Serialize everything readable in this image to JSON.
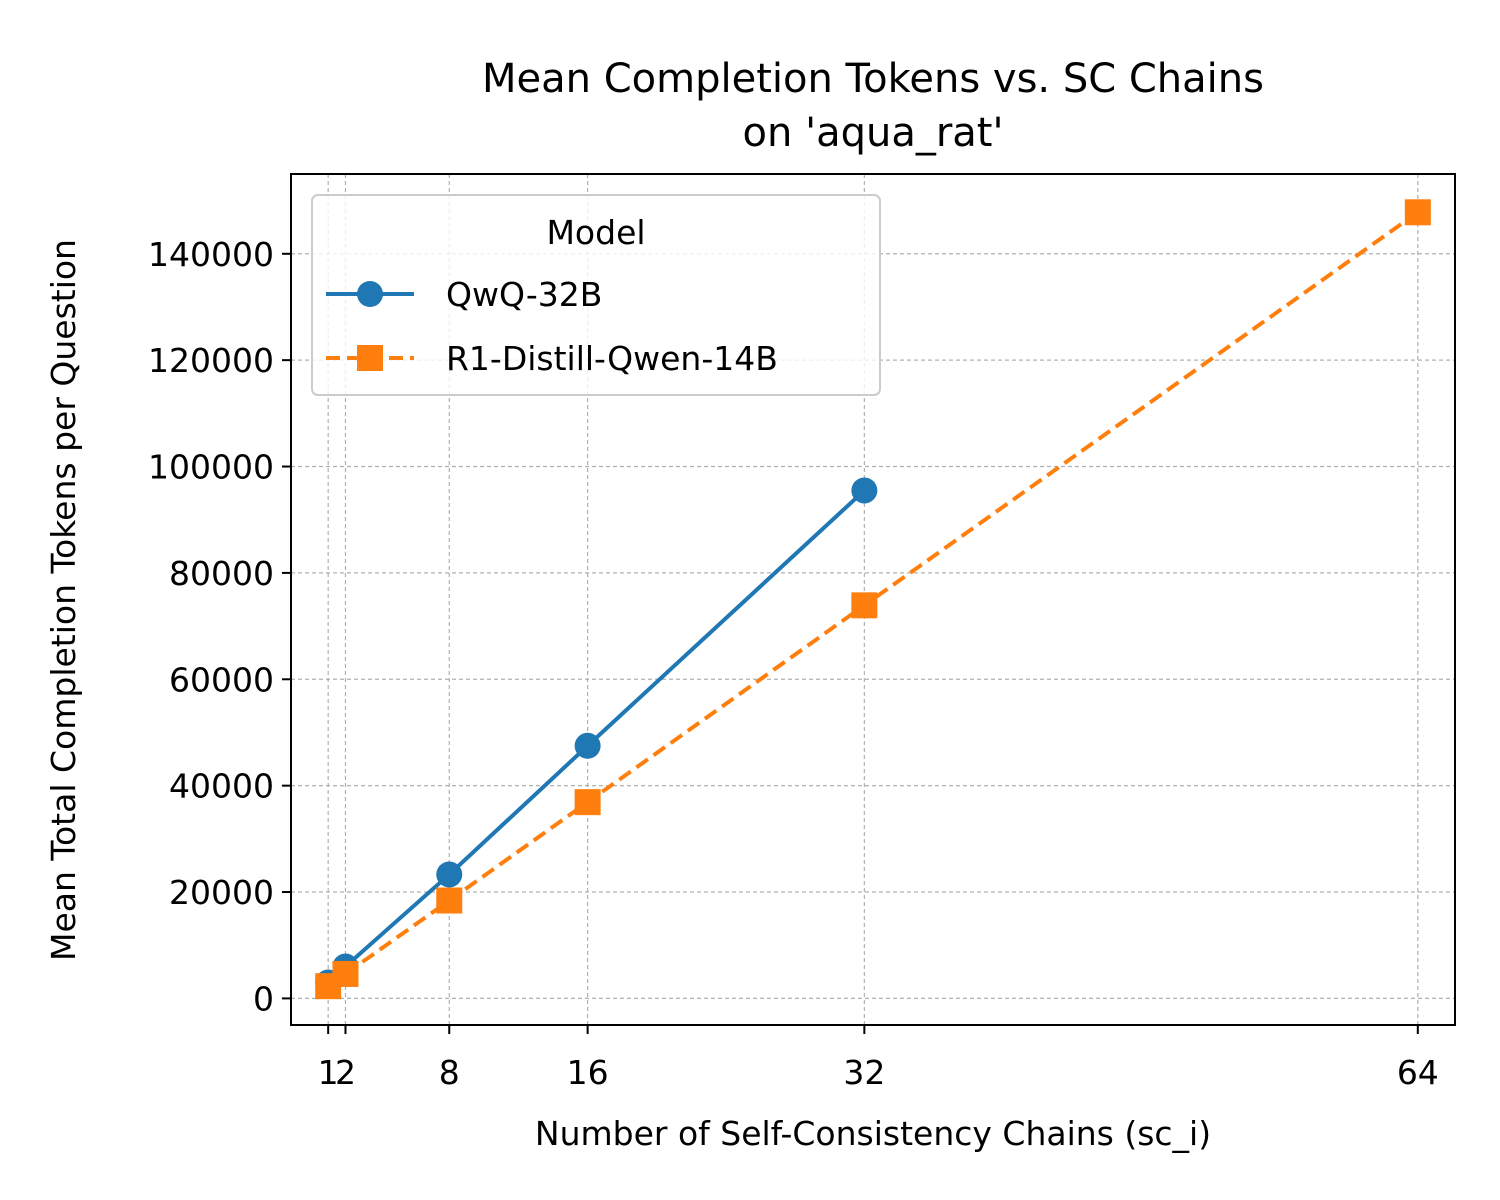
{
  "chart_data": {
    "type": "line",
    "title": "Mean Completion Tokens vs. SC Chains",
    "subtitle": "on 'aqua_rat'",
    "xlabel": "Number of Self-Consistency Chains (sc_i)",
    "ylabel": "Mean Total Completion Tokens per Question",
    "xlim": [
      -1.15,
      66.15
    ],
    "ylim": [
      -5000,
      155000
    ],
    "x_ticks": [
      1,
      2,
      8,
      16,
      32,
      64
    ],
    "y_ticks": [
      0,
      20000,
      40000,
      60000,
      80000,
      100000,
      120000,
      140000
    ],
    "grid": true,
    "legend": {
      "title": "Model",
      "placement": "upper-left"
    },
    "series": [
      {
        "name": "QwQ-32B",
        "color": "#1f77b4",
        "line_style": "solid",
        "marker": "circle",
        "x": [
          1,
          2,
          8,
          16,
          32
        ],
        "y": [
          3000,
          6000,
          23300,
          47500,
          95500
        ]
      },
      {
        "name": "R1-Distill-Qwen-14B",
        "color": "#ff7f0e",
        "line_style": "dashed",
        "marker": "square",
        "x": [
          1,
          2,
          8,
          16,
          32,
          64
        ],
        "y": [
          2300,
          4600,
          18400,
          36900,
          73900,
          147800
        ]
      }
    ]
  }
}
